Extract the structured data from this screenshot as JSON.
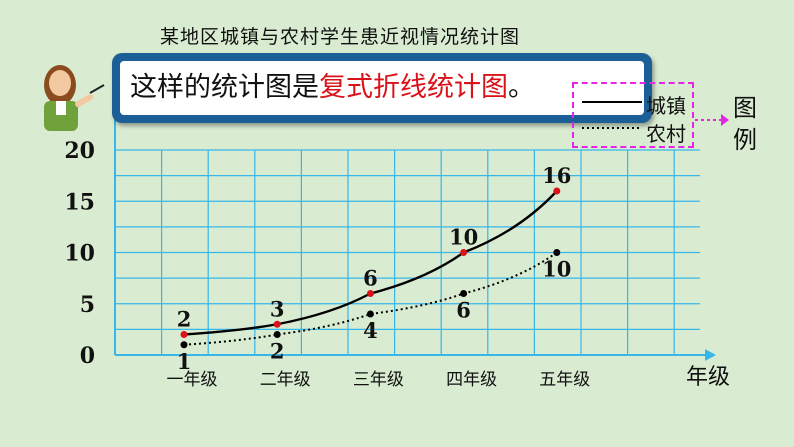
{
  "title": "某地区城镇与农村学生患近视情况统计图",
  "callout": {
    "text_prefix": "这样的统计图是",
    "text_highlight": "复式折线统计图",
    "text_suffix": "。"
  },
  "legend": {
    "heading": "图例",
    "series_labels": [
      "城镇",
      "农村"
    ]
  },
  "colors": {
    "background": "#d9ecd2",
    "grid": "#38b6e8",
    "town_line": "#000000",
    "town_marker": "#d8131a",
    "rural_line": "#000000",
    "callout_border": "#1c5e96",
    "highlight": "#d8131a",
    "legend_border": "#e426e4"
  },
  "chart_data": {
    "type": "line",
    "title": "某地区城镇与农村学生患近视情况统计图",
    "xlabel": "年级",
    "ylabel": "",
    "categories": [
      "一年级",
      "二年级",
      "三年级",
      "四年级",
      "五年级"
    ],
    "ylim": [
      0,
      20
    ],
    "yticks": [
      0,
      5,
      10,
      15,
      20
    ],
    "grid": true,
    "legend_position": "top-right",
    "series": [
      {
        "name": "城镇",
        "values": [
          2,
          3,
          6,
          10,
          16
        ],
        "style": "solid",
        "labels": [
          "2",
          "3",
          "6",
          "10",
          "16"
        ]
      },
      {
        "name": "农村",
        "values": [
          1,
          2,
          4,
          6,
          10
        ],
        "style": "dotted",
        "labels": [
          "1",
          "2",
          "4",
          "6",
          "10"
        ]
      }
    ]
  }
}
